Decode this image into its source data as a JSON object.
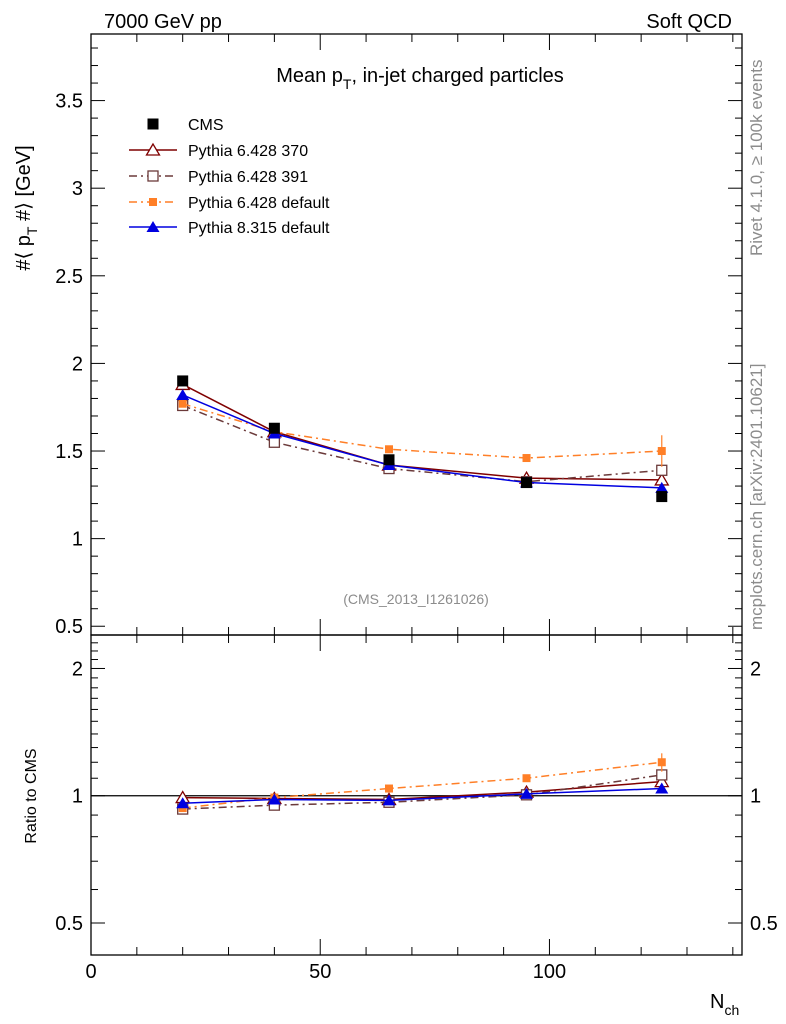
{
  "header": {
    "left": "7000 GeV pp",
    "right": "Soft QCD"
  },
  "main_plot": {
    "title": "Mean p",
    "title_sub": "T",
    "title_rest": ", in-jet charged particles",
    "ylabel": "#⟨ p",
    "ylabel_sub": "T",
    "ylabel_rest": " #⟩ [GeV]",
    "ylim": [
      0.45,
      3.88
    ],
    "yticks": [
      "0.5",
      "1",
      "1.5",
      "2",
      "2.5",
      "3",
      "3.5"
    ],
    "analysis_tag": "(CMS_2013_I1261026)"
  },
  "ratio_plot": {
    "ylabel": "Ratio to CMS",
    "ylim": [
      0.42,
      2.4
    ],
    "yticks": [
      "0.5",
      "1",
      "2"
    ]
  },
  "xaxis": {
    "label": "N",
    "label_sub": "ch",
    "xlim": [
      0,
      142
    ],
    "xticks": [
      "0",
      "50",
      "100"
    ]
  },
  "side_text": {
    "rivet": "Rivet 4.1.0, ≥ 100k events",
    "mcplots": "mcplots.cern.ch [arXiv:2401.10621]"
  },
  "legend": [
    {
      "label": "CMS"
    },
    {
      "label": "Pythia 6.428 370"
    },
    {
      "label": "Pythia 6.428 391"
    },
    {
      "label": "Pythia 6.428 default"
    },
    {
      "label": "Pythia 8.315 default"
    }
  ],
  "chart_data": {
    "type": "line",
    "title": "Mean pT, in-jet charged particles",
    "xlabel": "Nch",
    "ylabel": "#⟨ pT #⟩ [GeV]",
    "x": [
      20,
      40,
      65,
      95,
      124.5
    ],
    "series": [
      {
        "name": "CMS",
        "color": "#000000",
        "marker": "filled-square",
        "line": "none",
        "values": [
          1.9,
          1.63,
          1.45,
          1.32,
          1.24
        ],
        "ratio": [
          1.0,
          1.0,
          1.0,
          1.0,
          1.0
        ]
      },
      {
        "name": "Pythia 6.428 370",
        "color": "#7f0000",
        "marker": "open-triangle",
        "line": "solid",
        "values": [
          1.88,
          1.61,
          1.42,
          1.345,
          1.335
        ],
        "ratio": [
          0.99,
          0.985,
          0.98,
          1.02,
          1.08
        ]
      },
      {
        "name": "Pythia 6.428 391",
        "color": "#6b3a3a",
        "marker": "open-square",
        "line": "dashdot",
        "values": [
          1.76,
          1.55,
          1.4,
          1.325,
          1.39
        ],
        "ratio": [
          0.93,
          0.95,
          0.965,
          1.005,
          1.12
        ]
      },
      {
        "name": "Pythia 6.428 default",
        "color": "#ff7f27",
        "marker": "small-filled-square",
        "line": "dashdot",
        "values": [
          1.77,
          1.61,
          1.51,
          1.46,
          1.5
        ],
        "err": [
          0,
          0,
          0,
          0,
          0.09
        ],
        "ratio": [
          0.935,
          0.99,
          1.04,
          1.1,
          1.2
        ],
        "ratio_err": [
          0,
          0,
          0,
          0,
          0.06
        ]
      },
      {
        "name": "Pythia 8.315 default",
        "color": "#0000e0",
        "marker": "filled-triangle",
        "line": "solid",
        "values": [
          1.82,
          1.6,
          1.42,
          1.32,
          1.29
        ],
        "ratio": [
          0.96,
          0.98,
          0.975,
          1.01,
          1.04
        ]
      }
    ]
  }
}
